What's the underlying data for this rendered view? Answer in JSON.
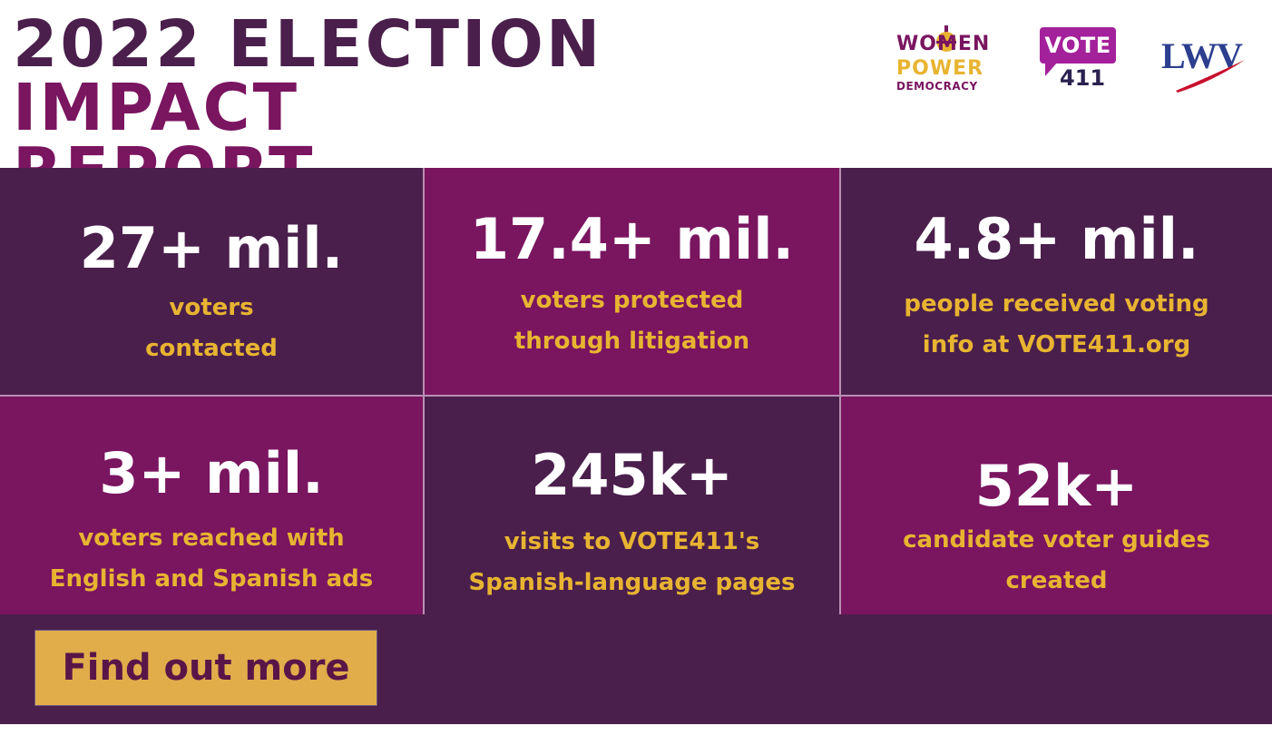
{
  "header": {
    "title_part1": "2022 ELECTION ",
    "title_part2": "IMPACT",
    "title_part3": "REPORT"
  },
  "logos": {
    "women_power_democracy": {
      "line1": "WOMEN",
      "line2": "POWER",
      "line3": "DEMOCRACY"
    },
    "vote411": {
      "line1": "VOTE",
      "line2": "411"
    },
    "lwv": {
      "text": "LWV"
    }
  },
  "stats": [
    {
      "value": "27+ mil.",
      "label": "voters\ncontacted"
    },
    {
      "value": "17.4+ mil.",
      "label": "voters protected\nthrough litigation"
    },
    {
      "value": "4.8+ mil.",
      "label": "people received voting\ninfo at VOTE411.org"
    },
    {
      "value": "3+ mil.",
      "label": "voters reached with\nEnglish and Spanish ads"
    },
    {
      "value": "245k+",
      "label": "visits to VOTE411's\nSpanish-language pages"
    },
    {
      "value": "52k+",
      "label": "candidate voter guides\ncreated"
    }
  ],
  "cta": {
    "label": "Find out more"
  },
  "colors": {
    "dark_purple": "#4a1f4c",
    "bright_purple": "#7a1560",
    "gold": "#e8b431",
    "button_gold": "#e0ad4a",
    "vote411_magenta": "#a3219a",
    "lwv_blue": "#2c3f8f"
  }
}
